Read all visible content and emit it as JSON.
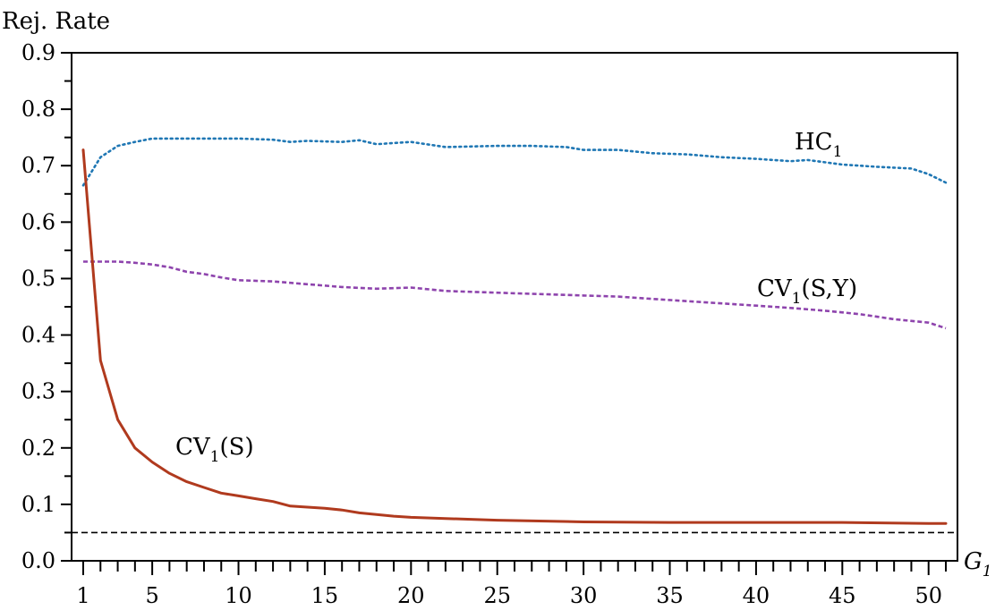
{
  "chart_data": {
    "type": "line",
    "ylabel": "Rej. Rate",
    "xlabel_main": "G",
    "xlabel_sub": "1",
    "xlim": [
      1,
      51
    ],
    "ylim": [
      0.0,
      0.9
    ],
    "x_ticks": [
      1,
      5,
      10,
      15,
      20,
      25,
      30,
      35,
      40,
      45,
      50
    ],
    "y_ticks": [
      "0.0",
      "0.1",
      "0.2",
      "0.3",
      "0.4",
      "0.5",
      "0.6",
      "0.7",
      "0.8",
      "0.9"
    ],
    "reference_line": {
      "y": 0.05,
      "style": "dashed",
      "color": "#000000"
    },
    "series": [
      {
        "label_main": "HC",
        "label_sub": "1",
        "label_suffix": "",
        "color": "#1f77b4",
        "style": "dotted",
        "x": [
          1,
          2,
          3,
          4,
          5,
          6,
          8,
          10,
          12,
          13,
          14,
          16,
          17,
          18,
          20,
          22,
          25,
          27,
          29,
          30,
          32,
          34,
          36,
          38,
          40,
          42,
          43,
          45,
          47,
          49,
          50,
          51
        ],
        "values": [
          0.665,
          0.715,
          0.735,
          0.742,
          0.748,
          0.748,
          0.748,
          0.748,
          0.746,
          0.742,
          0.744,
          0.742,
          0.745,
          0.738,
          0.742,
          0.733,
          0.735,
          0.735,
          0.733,
          0.728,
          0.728,
          0.722,
          0.72,
          0.715,
          0.712,
          0.708,
          0.71,
          0.702,
          0.698,
          0.695,
          0.685,
          0.67
        ]
      },
      {
        "label_main": "CV",
        "label_sub": "1",
        "label_suffix": "(S,Y)",
        "color": "#8e44ad",
        "style": "dashed",
        "x": [
          1,
          2,
          3,
          4,
          5,
          6,
          7,
          8,
          9,
          10,
          12,
          14,
          16,
          18,
          20,
          22,
          24,
          26,
          28,
          30,
          32,
          34,
          36,
          38,
          40,
          42,
          44,
          46,
          48,
          50,
          51
        ],
        "values": [
          0.53,
          0.53,
          0.53,
          0.528,
          0.525,
          0.52,
          0.512,
          0.508,
          0.502,
          0.497,
          0.495,
          0.49,
          0.485,
          0.482,
          0.484,
          0.478,
          0.476,
          0.474,
          0.472,
          0.47,
          0.468,
          0.464,
          0.46,
          0.456,
          0.452,
          0.448,
          0.443,
          0.437,
          0.428,
          0.422,
          0.412
        ]
      },
      {
        "label_main": "CV",
        "label_sub": "1",
        "label_suffix": "(S)",
        "color": "#b03a1e",
        "style": "solid",
        "x": [
          1,
          2,
          3,
          4,
          5,
          6,
          7,
          8,
          9,
          10,
          11,
          12,
          13,
          14,
          15,
          16,
          17,
          18,
          19,
          20,
          22,
          25,
          30,
          35,
          40,
          45,
          50,
          51
        ],
        "values": [
          0.728,
          0.355,
          0.25,
          0.2,
          0.175,
          0.155,
          0.14,
          0.13,
          0.12,
          0.115,
          0.11,
          0.105,
          0.097,
          0.095,
          0.093,
          0.09,
          0.085,
          0.082,
          0.079,
          0.077,
          0.075,
          0.072,
          0.069,
          0.068,
          0.068,
          0.068,
          0.066,
          0.066
        ]
      }
    ]
  }
}
